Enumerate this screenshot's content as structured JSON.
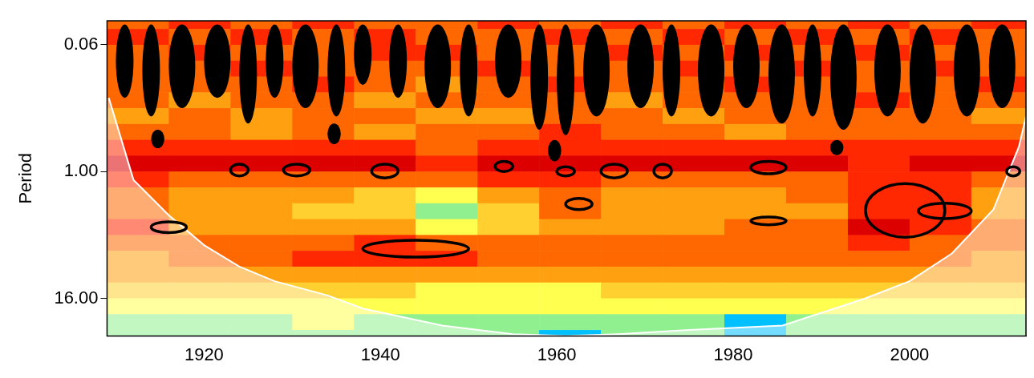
{
  "chart_data": {
    "type": "heatmap",
    "y_label": "Period",
    "xlim": [
      1909,
      2013.2
    ],
    "xticks": [
      1920,
      1940,
      1960,
      1980,
      2000
    ],
    "ylim": [
      0.037,
      36.5
    ],
    "yticks": [
      {
        "value": 0.0625,
        "label": "0.06"
      },
      {
        "value": 1,
        "label": "1.00"
      },
      {
        "value": 16,
        "label": "16.00"
      }
    ],
    "log": "y",
    "grid": false,
    "zlim": [
      0,
      10
    ],
    "x_edges": [
      1909,
      1916,
      1923,
      1930,
      1937,
      1944,
      1951,
      1958,
      1965,
      1972,
      1979,
      1986,
      1993,
      2000,
      2007,
      2014
    ],
    "period_edges": [
      0.03125,
      0.04419,
      0.0625,
      0.08839,
      0.125,
      0.17678,
      0.25,
      0.35355,
      0.5,
      0.70711,
      1,
      1.41421,
      2,
      2.82843,
      4,
      5.65685,
      8,
      11.3137,
      16,
      22.6274,
      32,
      45.2548
    ],
    "power": [
      [
        6,
        7,
        6,
        7,
        6,
        6,
        7,
        6,
        7,
        6,
        7,
        6,
        7,
        6,
        7
      ],
      [
        7,
        6,
        7,
        6,
        7,
        6,
        6,
        7,
        6,
        7,
        6,
        7,
        6,
        7,
        6
      ],
      [
        6,
        7,
        6,
        6,
        7,
        7,
        6,
        6,
        7,
        6,
        7,
        6,
        7,
        6,
        6
      ],
      [
        6,
        6,
        7,
        6,
        6,
        6,
        7,
        6,
        6,
        7,
        6,
        7,
        6,
        7,
        6
      ],
      [
        6,
        6,
        6,
        7,
        6,
        5,
        6,
        7,
        6,
        6,
        7,
        6,
        6,
        6,
        7
      ],
      [
        6,
        5,
        6,
        6,
        5,
        6,
        6,
        6,
        5,
        6,
        6,
        6,
        7,
        6,
        6
      ],
      [
        5,
        6,
        5,
        6,
        6,
        5,
        5,
        6,
        6,
        5,
        6,
        6,
        6,
        6,
        5
      ],
      [
        6,
        6,
        5,
        6,
        5,
        6,
        6,
        7,
        6,
        6,
        5,
        6,
        6,
        6,
        6
      ],
      [
        7,
        7,
        7,
        7,
        7,
        6,
        7,
        7,
        7,
        7,
        7,
        7,
        7,
        7,
        7
      ],
      [
        8,
        8,
        8,
        8,
        8,
        7,
        8,
        8,
        8,
        8,
        8,
        8,
        7,
        8,
        8
      ],
      [
        7,
        6,
        6,
        6,
        6,
        6,
        7,
        7,
        6,
        6,
        6,
        6,
        7,
        7,
        6
      ],
      [
        6,
        5,
        5,
        5,
        4,
        3,
        5,
        6,
        5,
        5,
        5,
        6,
        7,
        7,
        5
      ],
      [
        6,
        5,
        5,
        4,
        4,
        2,
        4,
        6,
        5,
        5,
        5,
        5,
        7,
        7,
        5
      ],
      [
        7,
        5,
        5,
        5,
        5,
        3,
        4,
        5,
        5,
        5,
        6,
        6,
        8,
        7,
        6
      ],
      [
        6,
        6,
        6,
        6,
        7,
        6,
        6,
        6,
        6,
        6,
        6,
        6,
        7,
        6,
        6
      ],
      [
        5,
        6,
        6,
        7,
        7,
        7,
        6,
        6,
        6,
        6,
        6,
        6,
        6,
        6,
        5
      ],
      [
        5,
        5,
        5,
        5,
        5,
        5,
        5,
        5,
        5,
        5,
        5,
        5,
        5,
        5,
        5
      ],
      [
        4,
        4,
        4,
        4,
        4,
        3,
        3,
        3,
        4,
        4,
        4,
        4,
        4,
        4,
        4
      ],
      [
        3,
        3,
        3,
        3,
        3,
        3,
        3,
        3,
        3,
        3,
        3,
        3,
        3,
        3,
        3
      ],
      [
        2,
        2,
        2,
        3,
        2,
        2,
        2,
        2,
        2,
        2,
        1,
        2,
        2,
        2,
        2
      ],
      [
        2,
        2,
        2,
        2,
        2,
        2,
        2,
        1,
        2,
        2,
        1,
        2,
        2,
        2,
        2
      ]
    ],
    "coi": {
      "x": [
        1909.2,
        1912,
        1916,
        1920,
        1924,
        1928,
        1934,
        1938,
        1947,
        1955,
        1961,
        1967,
        1975,
        1985.6,
        1995,
        2000,
        2004.8,
        2009.5,
        2012.4,
        2013.2
      ],
      "period": [
        0.2,
        1.2,
        2.6,
        5,
        8,
        11,
        15,
        20,
        29,
        35,
        36.5,
        35,
        32,
        29,
        16,
        11,
        6,
        2.3,
        0.58,
        0.3
      ]
    },
    "significant_areas": [
      {
        "x": [
          1910,
          1912
        ],
        "period": [
          0.04,
          0.2
        ]
      },
      {
        "x": [
          1913,
          1915
        ],
        "period": [
          0.04,
          0.3
        ]
      },
      {
        "x": [
          1916,
          1919
        ],
        "period": [
          0.04,
          0.25
        ]
      },
      {
        "x": [
          1920,
          1923
        ],
        "period": [
          0.04,
          0.2
        ]
      },
      {
        "x": [
          1924,
          1926
        ],
        "period": [
          0.04,
          0.35
        ]
      },
      {
        "x": [
          1927,
          1929
        ],
        "period": [
          0.04,
          0.2
        ]
      },
      {
        "x": [
          1930,
          1933
        ],
        "period": [
          0.04,
          0.25
        ]
      },
      {
        "x": [
          1934,
          1936
        ],
        "period": [
          0.04,
          0.3
        ]
      },
      {
        "x": [
          1937,
          1939
        ],
        "period": [
          0.04,
          0.15
        ]
      },
      {
        "x": [
          1941,
          1943
        ],
        "period": [
          0.04,
          0.2
        ]
      },
      {
        "x": [
          1945,
          1948
        ],
        "period": [
          0.04,
          0.25
        ]
      },
      {
        "x": [
          1949,
          1951
        ],
        "period": [
          0.04,
          0.3
        ]
      },
      {
        "x": [
          1953,
          1956
        ],
        "period": [
          0.04,
          0.2
        ]
      },
      {
        "x": [
          1957,
          1959
        ],
        "period": [
          0.04,
          0.4
        ]
      },
      {
        "x": [
          1960,
          1962
        ],
        "period": [
          0.04,
          0.45
        ]
      },
      {
        "x": [
          1963,
          1966
        ],
        "period": [
          0.04,
          0.3
        ]
      },
      {
        "x": [
          1968,
          1971
        ],
        "period": [
          0.04,
          0.25
        ]
      },
      {
        "x": [
          1972,
          1974
        ],
        "period": [
          0.04,
          0.3
        ]
      },
      {
        "x": [
          1976,
          1979
        ],
        "period": [
          0.04,
          0.3
        ]
      },
      {
        "x": [
          1980,
          1983
        ],
        "period": [
          0.04,
          0.25
        ]
      },
      {
        "x": [
          1984,
          1987
        ],
        "period": [
          0.04,
          0.35
        ]
      },
      {
        "x": [
          1988,
          1990
        ],
        "period": [
          0.04,
          0.3
        ]
      },
      {
        "x": [
          1991,
          1994
        ],
        "period": [
          0.04,
          0.4
        ]
      },
      {
        "x": [
          1996,
          1999
        ],
        "period": [
          0.04,
          0.3
        ]
      },
      {
        "x": [
          2000,
          2003
        ],
        "period": [
          0.04,
          0.35
        ]
      },
      {
        "x": [
          2005,
          2008
        ],
        "period": [
          0.04,
          0.3
        ]
      },
      {
        "x": [
          2009,
          2012
        ],
        "period": [
          0.04,
          0.25
        ]
      },
      {
        "x": [
          1914,
          1915.5
        ],
        "period": [
          0.4,
          0.6
        ]
      },
      {
        "x": [
          1934,
          1935.5
        ],
        "period": [
          0.35,
          0.55
        ]
      },
      {
        "x": [
          1959,
          1960.5
        ],
        "period": [
          0.5,
          0.8
        ]
      },
      {
        "x": [
          1991,
          1992.5
        ],
        "period": [
          0.5,
          0.7
        ]
      }
    ],
    "significant_contours": [
      {
        "x": [
          1923,
          1925
        ],
        "period": [
          0.85,
          1.1
        ]
      },
      {
        "x": [
          1929,
          1932
        ],
        "period": [
          0.85,
          1.1
        ]
      },
      {
        "x": [
          1939,
          1942
        ],
        "period": [
          0.85,
          1.15
        ]
      },
      {
        "x": [
          1953,
          1955
        ],
        "period": [
          0.8,
          1.0
        ]
      },
      {
        "x": [
          1960,
          1962
        ],
        "period": [
          0.9,
          1.1
        ]
      },
      {
        "x": [
          1965,
          1968
        ],
        "period": [
          0.85,
          1.15
        ]
      },
      {
        "x": [
          1971,
          1973
        ],
        "period": [
          0.85,
          1.15
        ]
      },
      {
        "x": [
          1982,
          1986
        ],
        "period": [
          0.8,
          1.05
        ]
      },
      {
        "x": [
          2011,
          2012.5
        ],
        "period": [
          0.9,
          1.1
        ]
      },
      {
        "x": [
          1961,
          1964
        ],
        "period": [
          1.8,
          2.3
        ]
      },
      {
        "x": [
          1914,
          1918
        ],
        "period": [
          3.0,
          3.8
        ]
      },
      {
        "x": [
          1982,
          1986
        ],
        "period": [
          2.7,
          3.2
        ]
      },
      {
        "x": [
          1938,
          1950
        ],
        "period": [
          4.5,
          6.5
        ]
      },
      {
        "x": [
          1995,
          2004
        ],
        "period": [
          1.3,
          4.2
        ]
      },
      {
        "x": [
          2001,
          2007
        ],
        "period": [
          2.0,
          2.8
        ]
      }
    ]
  }
}
